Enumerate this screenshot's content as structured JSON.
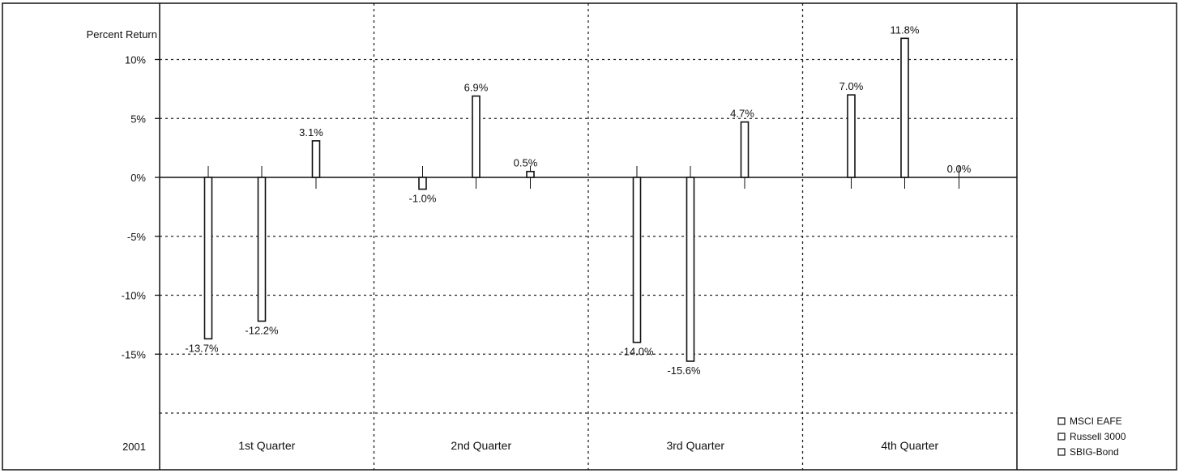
{
  "chart_data": {
    "type": "bar",
    "ylabel": "Percent Return",
    "year_label": "2001",
    "categories": [
      "1st Quarter",
      "2nd Quarter",
      "3rd Quarter",
      "4th Quarter"
    ],
    "series": [
      {
        "name": "MSCI EAFE",
        "values": [
          -13.7,
          -1.0,
          -14.0,
          7.0
        ],
        "labels": [
          "-13.7%",
          "-1.0%",
          "-14.0%",
          "7.0%"
        ]
      },
      {
        "name": "Russell 3000",
        "values": [
          -12.2,
          6.9,
          -15.6,
          11.8
        ],
        "labels": [
          "-12.2%",
          "6.9%",
          "-15.6%",
          "11.8%"
        ]
      },
      {
        "name": "SBIG-Bond",
        "values": [
          3.1,
          0.5,
          4.7,
          0.0
        ],
        "labels": [
          "3.1%",
          "0.5%",
          "4.7%",
          "0.0%"
        ]
      }
    ],
    "yticks": [
      10,
      5,
      0,
      -5,
      -10,
      -15
    ],
    "ytick_labels": [
      "10%",
      "5%",
      "0%",
      "-5%",
      "-10%",
      "-15%"
    ],
    "ylim": [
      -20,
      12.5
    ],
    "grid": true,
    "legend_position": "bottom-right",
    "colors": {
      "bar_fill": "#ffffff",
      "bar_stroke": "#111111"
    }
  }
}
